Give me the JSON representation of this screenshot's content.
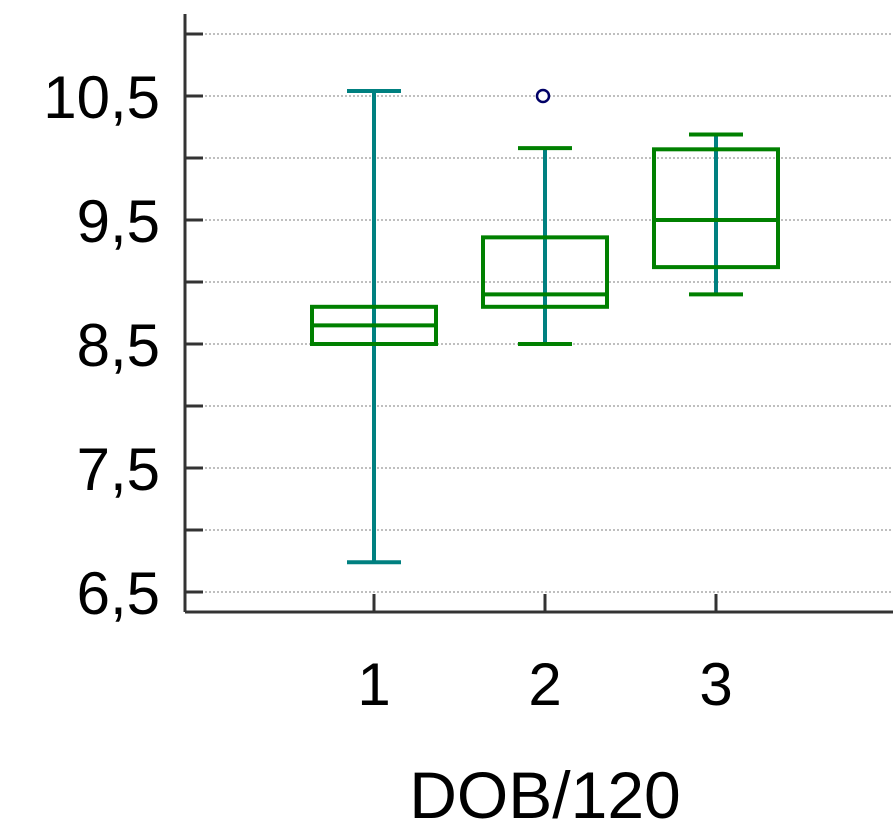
{
  "chart_data": {
    "type": "box",
    "xlabel": "DOB/120",
    "ylabel": "",
    "title": "",
    "categories": [
      "1",
      "2",
      "3"
    ],
    "ylim": [
      6.5,
      11.0
    ],
    "y_ticks_major": [
      6.5,
      7.5,
      8.5,
      9.5,
      10.5
    ],
    "y_tick_labels": [
      "6,5",
      "7,5",
      "8,5",
      "9,5",
      "10,5"
    ],
    "y_ticks_minor": [
      7.0,
      8.0,
      9.0,
      10.0,
      11.0
    ],
    "grid": true,
    "boxes": [
      {
        "category": "1",
        "min": 6.74,
        "q1": 8.5,
        "median": 8.65,
        "q3": 8.8,
        "max": 10.54,
        "outliers": []
      },
      {
        "category": "2",
        "min": 8.5,
        "q1": 8.8,
        "median": 8.9,
        "q3": 9.36,
        "max": 10.08,
        "outliers": [
          10.5
        ]
      },
      {
        "category": "3",
        "min": 8.9,
        "q1": 9.12,
        "median": 9.5,
        "q3": 10.07,
        "max": 10.19,
        "outliers": []
      }
    ],
    "colors": {
      "box": "#008000",
      "whisker": "#008080",
      "outlier": "#000066",
      "axis": "#333333",
      "grid": "#999999"
    }
  }
}
